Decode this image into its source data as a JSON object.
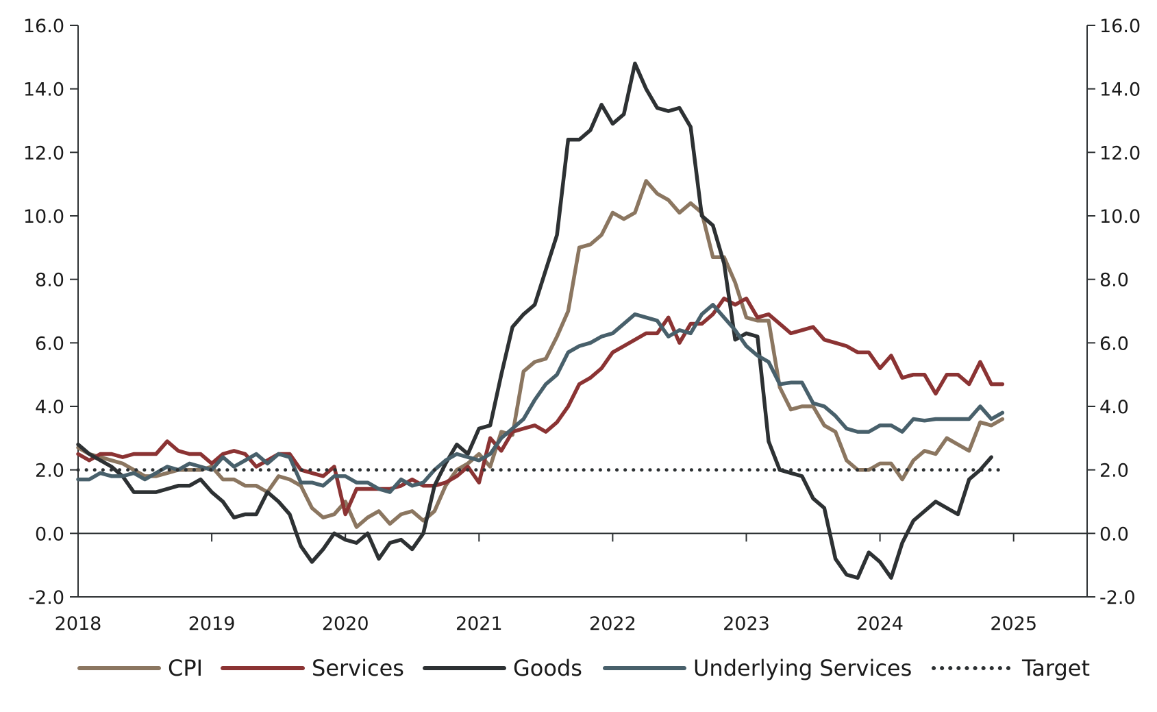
{
  "chart_data": {
    "type": "line",
    "title": "",
    "xlabel": "",
    "ylabel": "",
    "ylim": [
      -2,
      16
    ],
    "xlim": [
      2018.0,
      2025.55
    ],
    "y_ticks": [
      "-2.0",
      "0.0",
      "2.0",
      "4.0",
      "6.0",
      "8.0",
      "10.0",
      "12.0",
      "14.0",
      "16.0"
    ],
    "y_tick_values": [
      -2,
      0,
      2,
      4,
      6,
      8,
      10,
      12,
      14,
      16
    ],
    "x_ticks": [
      "2018",
      "2019",
      "2020",
      "2021",
      "2022",
      "2023",
      "2024",
      "2025"
    ],
    "x_tick_values": [
      2018,
      2019,
      2020,
      2021,
      2022,
      2023,
      2024,
      2025
    ],
    "x_start_label": "2018-01",
    "points_per_year": 12,
    "grid": false,
    "secondary_y_axis": true,
    "legend_position": "bottom",
    "series": [
      {
        "name": "CPI",
        "color": "#8b7660",
        "style": "solid",
        "values": [
          2.7,
          2.5,
          2.4,
          2.3,
          2.2,
          2.0,
          1.8,
          1.8,
          1.9,
          2.0,
          2.0,
          2.0,
          2.1,
          1.7,
          1.7,
          1.5,
          1.5,
          1.3,
          1.8,
          1.7,
          1.5,
          0.8,
          0.5,
          0.6,
          1.0,
          0.2,
          0.5,
          0.7,
          0.3,
          0.6,
          0.7,
          0.4,
          0.7,
          1.5,
          2.0,
          2.2,
          2.5,
          2.1,
          3.2,
          3.1,
          5.1,
          5.4,
          5.5,
          6.2,
          7.0,
          9.0,
          9.1,
          9.4,
          10.1,
          9.9,
          10.1,
          11.1,
          10.7,
          10.5,
          10.1,
          10.4,
          10.1,
          8.7,
          8.7,
          7.9,
          6.8,
          6.7,
          6.7,
          4.6,
          3.9,
          4.0,
          4.0,
          3.4,
          3.2,
          2.3,
          2.0,
          2.0,
          2.2,
          2.2,
          1.7,
          2.3,
          2.6,
          2.5,
          3.0,
          2.8,
          2.6,
          3.5,
          3.4,
          3.6
        ]
      },
      {
        "name": "Services",
        "color": "#8b3333",
        "style": "solid",
        "values": [
          2.5,
          2.3,
          2.5,
          2.5,
          2.4,
          2.5,
          2.5,
          2.5,
          2.9,
          2.6,
          2.5,
          2.5,
          2.2,
          2.5,
          2.6,
          2.5,
          2.1,
          2.3,
          2.5,
          2.5,
          2.0,
          1.9,
          1.8,
          2.1,
          0.6,
          1.4,
          1.4,
          1.4,
          1.4,
          1.5,
          1.7,
          1.5,
          1.5,
          1.6,
          1.8,
          2.1,
          1.6,
          3.0,
          2.6,
          3.2,
          3.3,
          3.4,
          3.2,
          3.5,
          4.0,
          4.7,
          4.9,
          5.2,
          5.7,
          5.9,
          6.1,
          6.3,
          6.3,
          6.8,
          6.0,
          6.6,
          6.6,
          6.9,
          7.4,
          7.2,
          7.4,
          6.8,
          6.9,
          6.6,
          6.3,
          6.4,
          6.5,
          6.1,
          6.0,
          5.9,
          5.7,
          5.7,
          5.2,
          5.6,
          4.9,
          5.0,
          5.0,
          4.4,
          5.0,
          5.0,
          4.7,
          5.4,
          4.7,
          4.7
        ]
      },
      {
        "name": "Goods",
        "color": "#2d3133",
        "style": "solid",
        "values": [
          2.8,
          2.5,
          2.3,
          2.1,
          1.8,
          1.3,
          1.3,
          1.3,
          1.4,
          1.5,
          1.5,
          1.7,
          1.3,
          1.0,
          0.5,
          0.6,
          0.6,
          1.3,
          1.0,
          0.6,
          -0.4,
          -0.9,
          -0.5,
          0.0,
          -0.2,
          -0.3,
          0.0,
          -0.8,
          -0.3,
          -0.2,
          -0.5,
          0.0,
          1.5,
          2.2,
          2.8,
          2.5,
          3.3,
          3.4,
          5.0,
          6.5,
          6.9,
          7.2,
          8.3,
          9.4,
          12.4,
          12.4,
          12.7,
          13.5,
          12.9,
          13.2,
          14.8,
          14.0,
          13.4,
          13.3,
          13.4,
          12.8,
          10.0,
          9.7,
          8.5,
          6.1,
          6.3,
          6.2,
          2.9,
          2.0,
          1.9,
          1.8,
          1.1,
          0.8,
          -0.8,
          -1.3,
          -1.4,
          -0.6,
          -0.9,
          -1.4,
          -0.3,
          0.4,
          0.7,
          1.0,
          0.8,
          0.6,
          1.7,
          2.0,
          2.4
        ]
      },
      {
        "name": "Underlying Services",
        "color": "#48606b",
        "style": "solid",
        "values": [
          1.7,
          1.7,
          1.9,
          1.8,
          1.8,
          1.9,
          1.7,
          1.9,
          2.1,
          2.0,
          2.2,
          2.1,
          2.0,
          2.4,
          2.1,
          2.3,
          2.5,
          2.2,
          2.5,
          2.4,
          1.6,
          1.6,
          1.5,
          1.8,
          1.8,
          1.6,
          1.6,
          1.4,
          1.3,
          1.7,
          1.5,
          1.6,
          2.0,
          2.3,
          2.5,
          2.4,
          2.3,
          2.5,
          3.0,
          3.3,
          3.6,
          4.2,
          4.7,
          5.0,
          5.7,
          5.9,
          6.0,
          6.2,
          6.3,
          6.6,
          6.9,
          6.8,
          6.7,
          6.2,
          6.4,
          6.3,
          6.9,
          7.2,
          6.8,
          6.4,
          5.9,
          5.6,
          5.4,
          4.7,
          4.75,
          4.75,
          4.1,
          4.0,
          3.7,
          3.3,
          3.2,
          3.2,
          3.4,
          3.4,
          3.2,
          3.6,
          3.55,
          3.6,
          3.6,
          3.6,
          3.6,
          4.0,
          3.6,
          3.8
        ]
      },
      {
        "name": "Target",
        "color": "#2d3133",
        "style": "dotted",
        "values": [
          2.0,
          2.0,
          2.0,
          2.0,
          2.0,
          2.0,
          2.0,
          2.0,
          2.0,
          2.0,
          2.0,
          2.0,
          2.0,
          2.0,
          2.0,
          2.0,
          2.0,
          2.0,
          2.0,
          2.0,
          2.0,
          2.0,
          2.0,
          2.0,
          2.0,
          2.0,
          2.0,
          2.0,
          2.0,
          2.0,
          2.0,
          2.0,
          2.0,
          2.0,
          2.0,
          2.0,
          2.0,
          2.0,
          2.0,
          2.0,
          2.0,
          2.0,
          2.0,
          2.0,
          2.0,
          2.0,
          2.0,
          2.0,
          2.0,
          2.0,
          2.0,
          2.0,
          2.0,
          2.0,
          2.0,
          2.0,
          2.0,
          2.0,
          2.0,
          2.0,
          2.0,
          2.0,
          2.0,
          2.0,
          2.0,
          2.0,
          2.0,
          2.0,
          2.0,
          2.0,
          2.0,
          2.0,
          2.0,
          2.0,
          2.0,
          2.0,
          2.0,
          2.0,
          2.0,
          2.0,
          2.0,
          2.0,
          2.0,
          2.0
        ]
      }
    ]
  }
}
